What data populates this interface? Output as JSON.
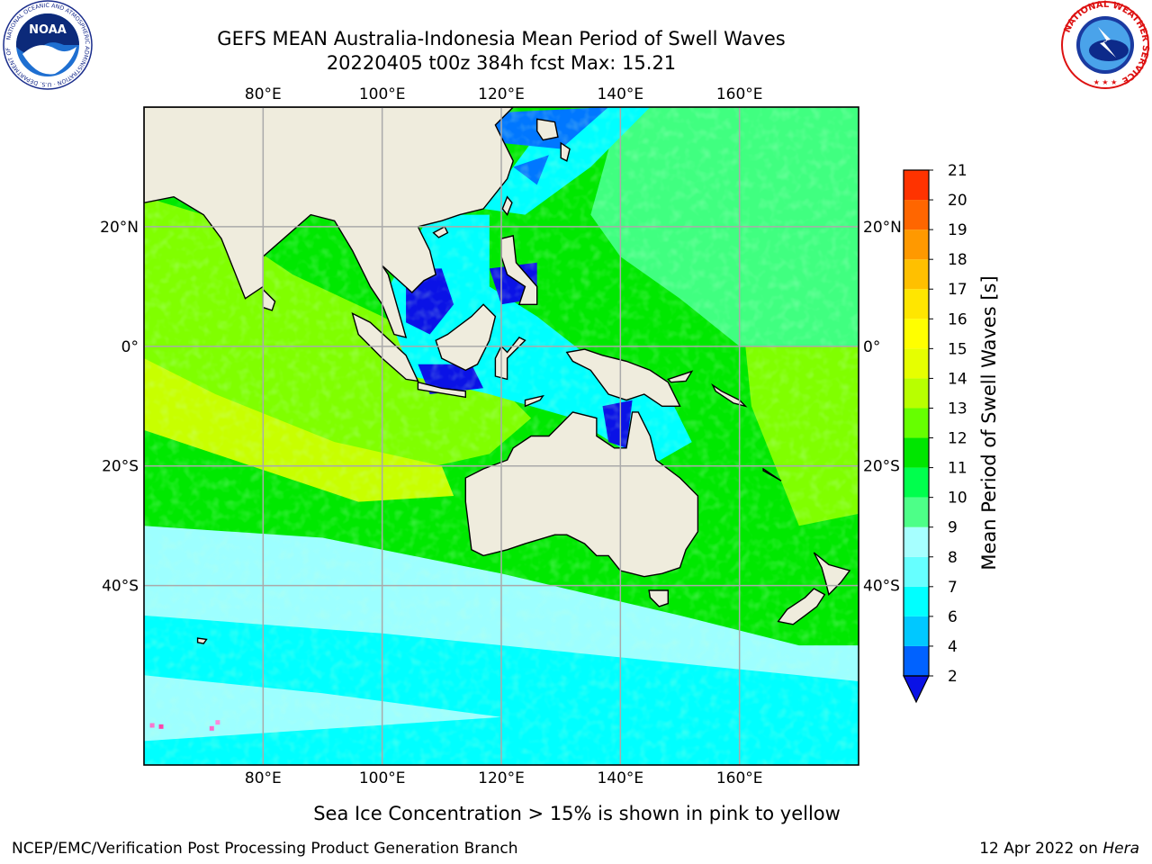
{
  "title": {
    "line1": "GEFS MEAN Australia-Indonesia Mean Period of Swell Waves",
    "line2": "20220405 t00z 384h fcst   Max: 15.21"
  },
  "map": {
    "type": "heatmap",
    "projection": "cylindrical",
    "lon_range": [
      60,
      180
    ],
    "lat_range": [
      -70,
      40
    ],
    "lon_ticks": [
      "80°E",
      "100°E",
      "120°E",
      "140°E",
      "160°E"
    ],
    "lat_ticks": [
      "20°N",
      "0°",
      "20°S",
      "40°S"
    ],
    "grid": true,
    "land_color": "#efecdd",
    "ocean_colors": {
      "deep_blue": "#0a12e6",
      "blue": "#0077ff",
      "cyan": "#00ffff",
      "light_cyan": "#9dffff",
      "mint": "#40ff80",
      "green": "#00e800",
      "lime": "#80ff00",
      "yellow_green": "#c8ff00"
    }
  },
  "colorbar": {
    "label": "Mean Period of Swell Waves [s]",
    "tick_labels": [
      "2",
      "4",
      "6",
      "7",
      "8",
      "9",
      "10",
      "11",
      "12",
      "13",
      "14",
      "15",
      "16",
      "17",
      "18",
      "19",
      "20",
      "21"
    ],
    "colors": [
      "#0062ff",
      "#00c8ff",
      "#00ffff",
      "#66ffff",
      "#a6ffff",
      "#4dff88",
      "#00ff4d",
      "#00e600",
      "#66ff00",
      "#b8ff00",
      "#e6ff00",
      "#ffff00",
      "#ffe600",
      "#ffc000",
      "#ff9900",
      "#ff6600",
      "#ff3300",
      "#ff0000"
    ],
    "extend_color": "#0a12e6",
    "extend": "min"
  },
  "note": "Sea Ice Concentration > 15% is shown in pink to yellow",
  "footer": {
    "left": "NCEP/EMC/Verification Post Processing Product Generation Branch",
    "date": "12 Apr 2022 on ",
    "machine": "Hera"
  },
  "logos": {
    "noaa_text": "NOAA",
    "noaa_ring": "NATIONAL OCEANIC AND ATMOSPHERIC ADMINISTRATION · U.S. DEPARTMENT OF COMMERCE",
    "nws_ring": "NATIONAL WEATHER SERVICE"
  }
}
